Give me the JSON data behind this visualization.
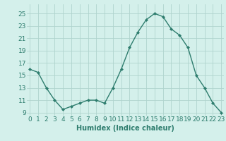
{
  "x": [
    0,
    1,
    2,
    3,
    4,
    5,
    6,
    7,
    8,
    9,
    10,
    11,
    12,
    13,
    14,
    15,
    16,
    17,
    18,
    19,
    20,
    21,
    22,
    23
  ],
  "y": [
    16,
    15.5,
    13,
    11,
    9.5,
    10,
    10.5,
    11,
    11,
    10.5,
    13,
    16,
    19.5,
    22,
    24,
    25,
    24.5,
    22.5,
    21.5,
    19.5,
    15,
    13,
    10.5,
    9
  ],
  "line_color": "#2e7d6e",
  "marker": "D",
  "marker_size": 2,
  "bg_color": "#d4f0eb",
  "grid_color": "#b0d4ce",
  "xlabel": "Humidex (Indice chaleur)",
  "xlabel_fontsize": 7,
  "yticks": [
    9,
    11,
    13,
    15,
    17,
    19,
    21,
    23,
    25
  ],
  "xticks": [
    0,
    1,
    2,
    3,
    4,
    5,
    6,
    7,
    8,
    9,
    10,
    11,
    12,
    13,
    14,
    15,
    16,
    17,
    18,
    19,
    20,
    21,
    22,
    23
  ],
  "xlim": [
    -0.3,
    23.3
  ],
  "ylim": [
    8.5,
    26.5
  ],
  "tick_fontsize": 6.5
}
